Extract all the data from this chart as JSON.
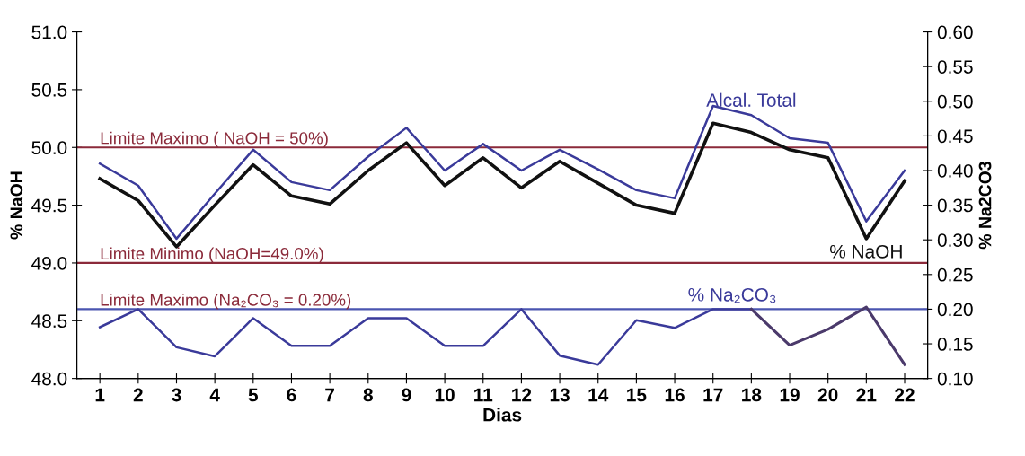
{
  "chart_data": {
    "type": "line",
    "xlabel": "Dias",
    "ylabel": "% NaOH",
    "y2label": "% Na2CO3",
    "categories": [
      "1",
      "2",
      "3",
      "4",
      "5",
      "6",
      "7",
      "8",
      "9",
      "10",
      "11",
      "12",
      "13",
      "14",
      "15",
      "16",
      "17",
      "18",
      "19",
      "20",
      "21",
      "22"
    ],
    "series": [
      {
        "name": "Alcal. Total",
        "color": "#3a3a9a",
        "values": [
          49.86,
          49.67,
          49.21,
          49.6,
          49.98,
          49.7,
          49.63,
          49.92,
          50.17,
          49.8,
          50.03,
          49.8,
          49.98,
          49.81,
          49.63,
          49.56,
          50.36,
          50.28,
          50.08,
          50.04,
          49.36,
          49.8
        ]
      },
      {
        "name": "% NaOH",
        "color": "#111111",
        "values": [
          49.73,
          49.54,
          49.14,
          49.5,
          49.85,
          49.58,
          49.51,
          49.8,
          50.04,
          49.67,
          49.91,
          49.65,
          49.88,
          49.69,
          49.5,
          49.43,
          50.21,
          50.13,
          49.98,
          49.91,
          49.21,
          49.71
        ]
      },
      {
        "name": "% Na₂CO₃",
        "color": "#3a3a9a",
        "axis": "y2",
        "values": [
          0.174,
          0.2,
          0.145,
          0.132,
          0.187,
          0.147,
          0.147,
          0.187,
          0.187,
          0.147,
          0.147,
          0.2,
          0.133,
          0.12,
          0.184,
          0.173,
          0.2,
          0.2,
          null,
          null,
          null,
          null
        ]
      },
      {
        "color": "#4b3a6b",
        "axis": "y2",
        "values": [
          null,
          null,
          null,
          null,
          null,
          null,
          null,
          null,
          null,
          null,
          null,
          null,
          null,
          null,
          null,
          null,
          null,
          0.2,
          0.148,
          0.171,
          0.203,
          0.12
        ]
      }
    ],
    "ylim": [
      48.0,
      51.0
    ],
    "yticks": [
      {
        "value": 48.0,
        "label": "48.0"
      },
      {
        "value": 48.5,
        "label": "48.5"
      },
      {
        "value": 49.0,
        "label": "49.0"
      },
      {
        "value": 49.5,
        "label": "49.5"
      },
      {
        "value": 50.0,
        "label": "50.0"
      },
      {
        "value": 50.5,
        "label": "50.5"
      },
      {
        "value": 51.0,
        "label": "51.0"
      }
    ],
    "y2lim": [
      0.1,
      0.6
    ],
    "y2ticks": [
      {
        "value": 0.1,
        "label": "0.10"
      },
      {
        "value": 0.15,
        "label": "0.15"
      },
      {
        "value": 0.2,
        "label": "0.20"
      },
      {
        "value": 0.25,
        "label": "0.25"
      },
      {
        "value": 0.3,
        "label": "0.30"
      },
      {
        "value": 0.35,
        "label": "0.35"
      },
      {
        "value": 0.4,
        "label": "0.40"
      },
      {
        "value": 0.45,
        "label": "0.45"
      },
      {
        "value": 0.5,
        "label": "0.50"
      },
      {
        "value": 0.55,
        "label": "0.55"
      },
      {
        "value": 0.6,
        "label": "0.60"
      }
    ],
    "ref_lines": [
      {
        "axis": "y",
        "value": 50.0,
        "label": "Limite Maximo ( NaOH = 50%)",
        "color": "#8b2a3a"
      },
      {
        "axis": "y",
        "value": 49.0,
        "label": "Limite Minimo (NaOH=49.0%)",
        "color": "#8b2a3a"
      },
      {
        "axis": "y2",
        "value": 0.2,
        "label": "Limite Maximo (Na₂CO₃ = 0.20%)",
        "color": "#4a55b0"
      }
    ],
    "grid": false,
    "legend": false,
    "marker": "none",
    "line_style": "solid"
  }
}
